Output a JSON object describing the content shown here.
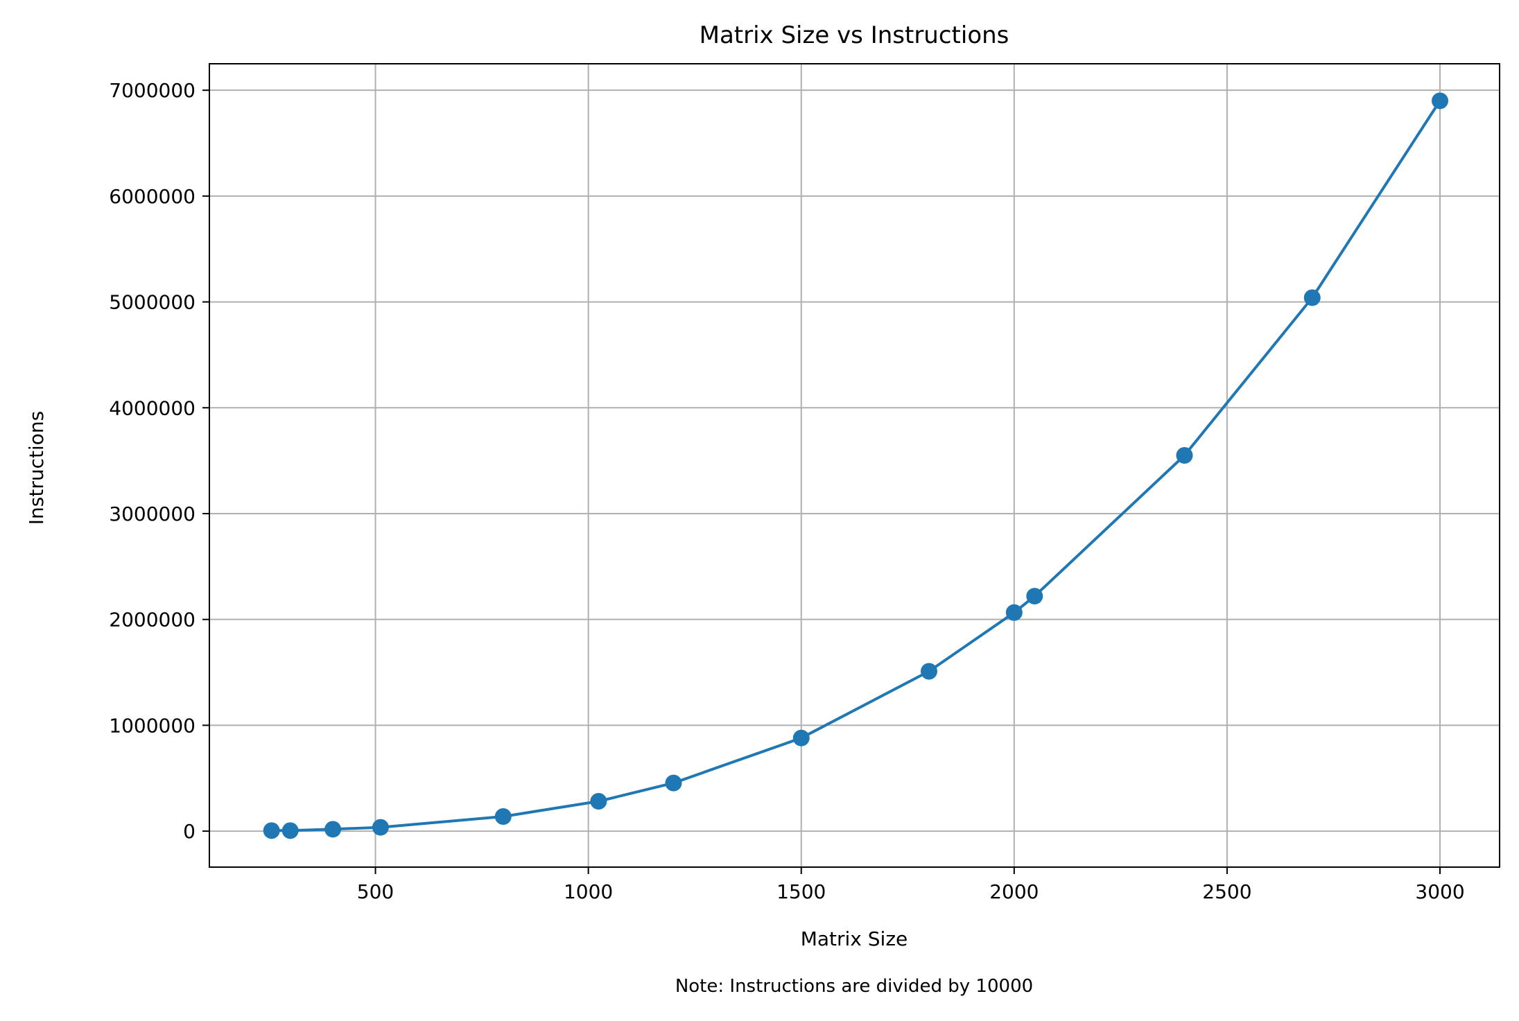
{
  "chart_data": {
    "type": "line",
    "title": "Matrix Size vs Instructions",
    "xlabel": "Matrix Size",
    "ylabel": "Instructions",
    "note": "Note: Instructions are divided by 10000",
    "xlim": [
      110,
      3140
    ],
    "ylim": [
      -340000,
      7250000
    ],
    "xticks": [
      500,
      1000,
      1500,
      2000,
      2500,
      3000
    ],
    "yticks": [
      0,
      1000000,
      2000000,
      3000000,
      4000000,
      5000000,
      6000000,
      7000000
    ],
    "xtick_labels": [
      "500",
      "1000",
      "1500",
      "2000",
      "2500",
      "3000"
    ],
    "ytick_labels": [
      "0",
      "1000000",
      "2000000",
      "3000000",
      "4000000",
      "5000000",
      "6000000",
      "7000000"
    ],
    "grid": true,
    "series": [
      {
        "name": "Instructions",
        "color": "#1f77b4",
        "marker": "circle",
        "x": [
          256,
          300,
          400,
          512,
          800,
          1024,
          1200,
          1500,
          1800,
          2000,
          2048,
          2400,
          2700,
          3000
        ],
        "y": [
          5000,
          5000,
          18000,
          36000,
          138000,
          282000,
          455000,
          880000,
          1510000,
          2065000,
          2220000,
          3550000,
          5040000,
          6900000
        ]
      }
    ]
  }
}
